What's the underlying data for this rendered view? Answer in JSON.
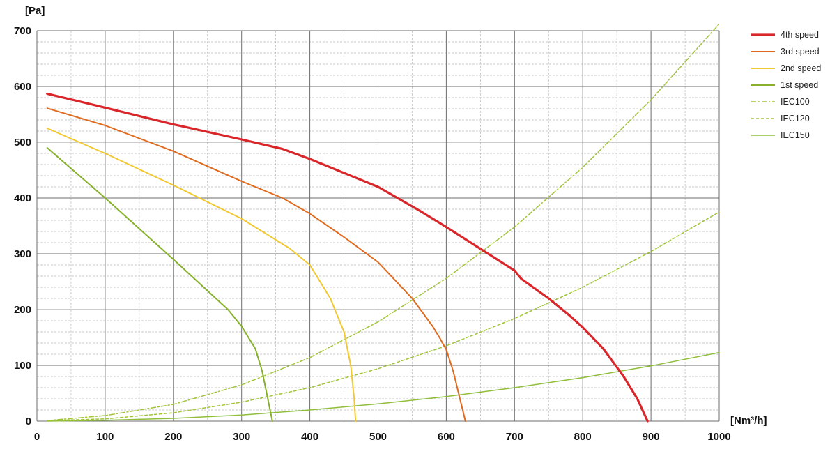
{
  "chart_data": {
    "type": "line",
    "y_unit": "[Pa]",
    "x_unit": "[Nm³/h]",
    "xlim": [
      0,
      1000
    ],
    "ylim": [
      0,
      700
    ],
    "x_ticks": [
      0,
      100,
      200,
      300,
      400,
      500,
      600,
      700,
      800,
      900,
      1000
    ],
    "y_ticks": [
      0,
      100,
      200,
      300,
      400,
      500,
      600,
      700
    ],
    "grid": true,
    "legend_position": "right",
    "series": [
      {
        "name": "4th speed",
        "color": "#d9262a",
        "style": "solid-thick",
        "x": [
          15,
          100,
          200,
          300,
          360,
          400,
          500,
          560,
          600,
          700,
          710,
          750,
          780,
          800,
          830,
          860,
          880,
          895
        ],
        "y": [
          587,
          562,
          532,
          505,
          488,
          470,
          420,
          378,
          348,
          270,
          255,
          220,
          190,
          168,
          130,
          80,
          40,
          0
        ]
      },
      {
        "name": "3rd speed",
        "color": "#e06a1e",
        "style": "solid",
        "x": [
          15,
          100,
          200,
          300,
          360,
          400,
          450,
          500,
          550,
          580,
          590,
          600,
          610,
          620,
          628
        ],
        "y": [
          561,
          530,
          484,
          430,
          400,
          372,
          330,
          285,
          220,
          170,
          150,
          128,
          90,
          40,
          0
        ]
      },
      {
        "name": "2nd speed",
        "color": "#f1c832",
        "style": "solid",
        "x": [
          15,
          100,
          200,
          300,
          370,
          400,
          430,
          450,
          460,
          465,
          467
        ],
        "y": [
          525,
          480,
          423,
          363,
          310,
          280,
          220,
          160,
          100,
          40,
          0
        ]
      },
      {
        "name": "1st speed",
        "color": "#86b12a",
        "style": "solid",
        "x": [
          15,
          100,
          200,
          280,
          300,
          320,
          330,
          340,
          345
        ],
        "y": [
          490,
          400,
          290,
          200,
          170,
          130,
          90,
          30,
          0
        ]
      },
      {
        "name": "IEC100",
        "color": "#a2c43a",
        "style": "dash-dot",
        "x": [
          15,
          100,
          200,
          300,
          400,
          500,
          600,
          700,
          800,
          900,
          1000
        ],
        "y": [
          1,
          10,
          30,
          65,
          114,
          178,
          256,
          348,
          455,
          576,
          712
        ]
      },
      {
        "name": "IEC120",
        "color": "#a2c43a",
        "style": "dashed",
        "x": [
          15,
          100,
          200,
          300,
          400,
          500,
          600,
          700,
          800,
          900,
          1000
        ],
        "y": [
          1,
          4,
          15,
          34,
          60,
          94,
          135,
          184,
          240,
          304,
          375
        ]
      },
      {
        "name": "IEC150",
        "color": "#8fbe3a",
        "style": "solid-thin",
        "x": [
          15,
          100,
          200,
          300,
          400,
          500,
          600,
          700,
          800,
          900,
          1000
        ],
        "y": [
          0,
          1.5,
          5,
          11,
          20,
          31,
          44,
          60,
          78,
          99,
          123
        ]
      }
    ]
  }
}
